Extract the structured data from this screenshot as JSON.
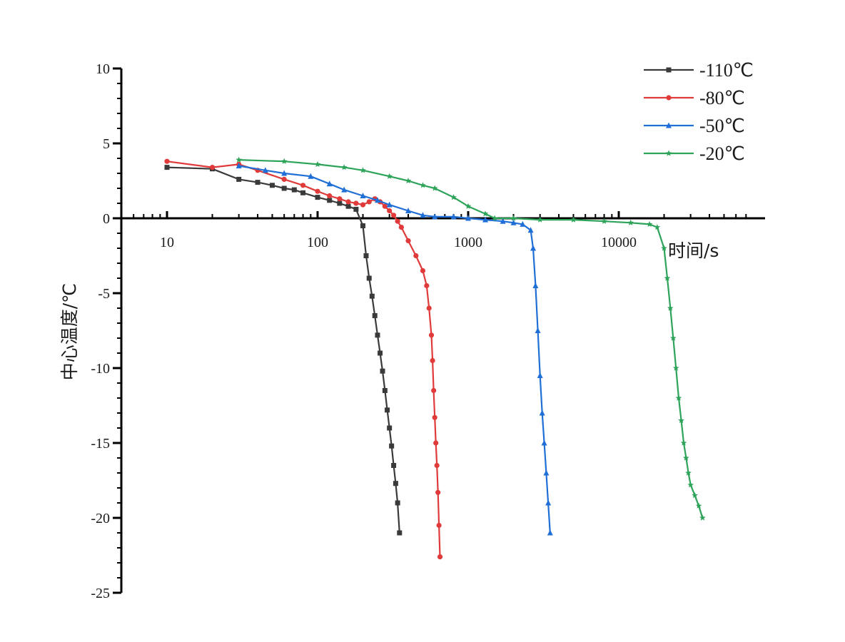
{
  "chart_data": {
    "type": "line",
    "title": "",
    "xlabel": "时间/s",
    "ylabel": "中心温度/℃",
    "x_scale": "log",
    "xlim": [
      5,
      70000
    ],
    "ylim": [
      -25,
      10
    ],
    "x_ticks": [
      10,
      100,
      1000,
      10000
    ],
    "x_tick_labels": [
      "10",
      "100",
      "1000",
      "10000"
    ],
    "y_ticks": [
      10,
      5,
      0,
      -5,
      -10,
      -15,
      -20,
      -25
    ],
    "y_tick_labels": [
      "10",
      "5",
      "0",
      "-5",
      "-10",
      "-15",
      "-20",
      "-25"
    ],
    "x_axis_crosses_y_at": 0,
    "grid": false,
    "legend_position": "top-right",
    "series": [
      {
        "name": "-110℃",
        "color": "#3a3a3a",
        "marker": "square",
        "x": [
          10,
          20,
          30,
          40,
          50,
          60,
          70,
          80,
          100,
          120,
          140,
          160,
          180,
          200,
          210,
          220,
          230,
          240,
          250,
          260,
          270,
          280,
          290,
          300,
          310,
          320,
          330,
          340,
          350
        ],
        "y": [
          3.4,
          3.3,
          2.6,
          2.4,
          2.2,
          2.0,
          1.9,
          1.7,
          1.4,
          1.2,
          1.0,
          0.8,
          0.6,
          -0.5,
          -2.5,
          -4.0,
          -5.2,
          -6.5,
          -7.8,
          -9.0,
          -10.2,
          -11.5,
          -12.8,
          -14.0,
          -15.2,
          -16.5,
          -17.7,
          -19.0,
          -21.0
        ]
      },
      {
        "name": "-80℃",
        "color": "#e03a3a",
        "marker": "circle",
        "x": [
          10,
          20,
          30,
          40,
          60,
          80,
          100,
          120,
          140,
          160,
          180,
          200,
          220,
          240,
          260,
          280,
          300,
          320,
          340,
          360,
          400,
          450,
          500,
          530,
          550,
          570,
          580,
          590,
          600,
          610,
          620,
          630,
          640,
          650
        ],
        "y": [
          3.8,
          3.4,
          3.6,
          3.2,
          2.6,
          2.2,
          1.8,
          1.5,
          1.3,
          1.1,
          1.0,
          0.9,
          1.1,
          1.3,
          1.1,
          0.8,
          0.5,
          0.2,
          -0.2,
          -0.6,
          -1.5,
          -2.5,
          -3.5,
          -4.5,
          -6.0,
          -7.8,
          -9.5,
          -11.5,
          -13.3,
          -15.0,
          -16.5,
          -18.3,
          -20.5,
          -22.6
        ]
      },
      {
        "name": "-50℃",
        "color": "#1f6fd6",
        "marker": "triangle",
        "x": [
          30,
          45,
          60,
          90,
          120,
          150,
          200,
          250,
          300,
          400,
          500,
          600,
          800,
          1000,
          1300,
          1700,
          2000,
          2300,
          2600,
          2700,
          2800,
          2900,
          3000,
          3100,
          3200,
          3300,
          3400,
          3500
        ],
        "y": [
          3.5,
          3.2,
          3.0,
          2.8,
          2.3,
          1.9,
          1.5,
          1.2,
          0.9,
          0.5,
          0.2,
          0.1,
          0.1,
          0.0,
          -0.1,
          -0.2,
          -0.3,
          -0.4,
          -0.8,
          -2.0,
          -4.5,
          -7.5,
          -10.5,
          -13.0,
          -15.0,
          -17.0,
          -19.0,
          -21.0
        ]
      },
      {
        "name": "-20℃",
        "color": "#2ea35a",
        "marker": "star",
        "x": [
          30,
          60,
          100,
          150,
          200,
          300,
          400,
          500,
          600,
          800,
          1000,
          1300,
          1500,
          2000,
          3000,
          5000,
          8000,
          12000,
          16000,
          18000,
          20000,
          21000,
          22000,
          23000,
          24000,
          25000,
          26000,
          27000,
          28000,
          29000,
          30000,
          32000,
          34000,
          36000
        ],
        "y": [
          3.9,
          3.8,
          3.6,
          3.4,
          3.2,
          2.8,
          2.5,
          2.2,
          2.0,
          1.4,
          0.8,
          0.3,
          0.0,
          0.0,
          -0.1,
          -0.1,
          -0.2,
          -0.3,
          -0.4,
          -0.6,
          -2.0,
          -4.0,
          -6.0,
          -8.0,
          -10.0,
          -12.0,
          -13.5,
          -15.0,
          -16.0,
          -17.0,
          -17.8,
          -18.5,
          -19.2,
          -20.0
        ]
      }
    ]
  }
}
